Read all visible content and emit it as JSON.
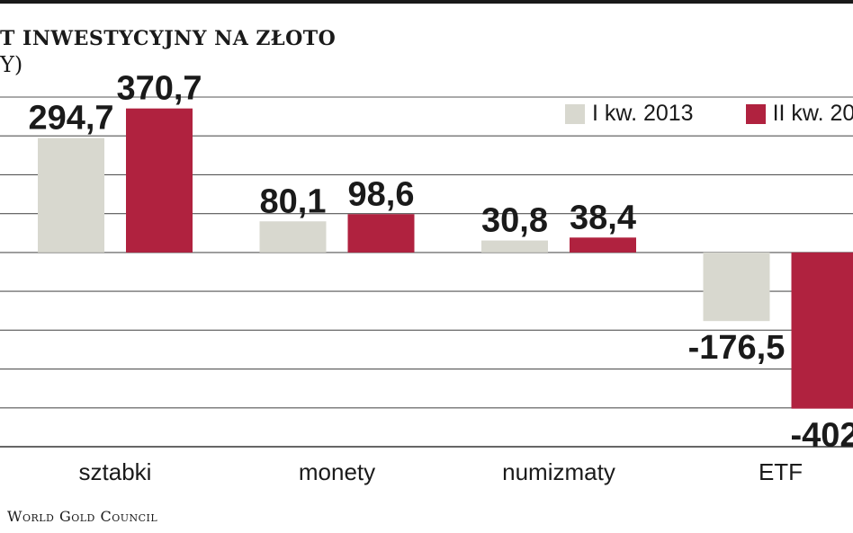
{
  "header": {
    "title": "T INWESTYCYJNY NA ZŁOTO",
    "subtitle": "Y)"
  },
  "source": "World Gold Council",
  "colors": {
    "series_1": "#d8d8cf",
    "series_2": "#b0223f",
    "grid": "#555555"
  },
  "chart_data": {
    "type": "bar",
    "categories": [
      "sztabki",
      "monety",
      "numizmaty",
      "ETF"
    ],
    "series": [
      {
        "name": "I kw. 2013",
        "values": [
          294.7,
          80.1,
          30.8,
          -176.5
        ],
        "labels": [
          "294,7",
          "80,1",
          "30,8",
          "-176,5"
        ]
      },
      {
        "name": "II kw. 20",
        "values": [
          370.7,
          98.6,
          38.4,
          -402
        ],
        "labels": [
          "370,7",
          "98,6",
          "38,4",
          "-402"
        ]
      }
    ],
    "ylim": [
      -500,
      400
    ],
    "grid": true,
    "legend": "top-right"
  }
}
